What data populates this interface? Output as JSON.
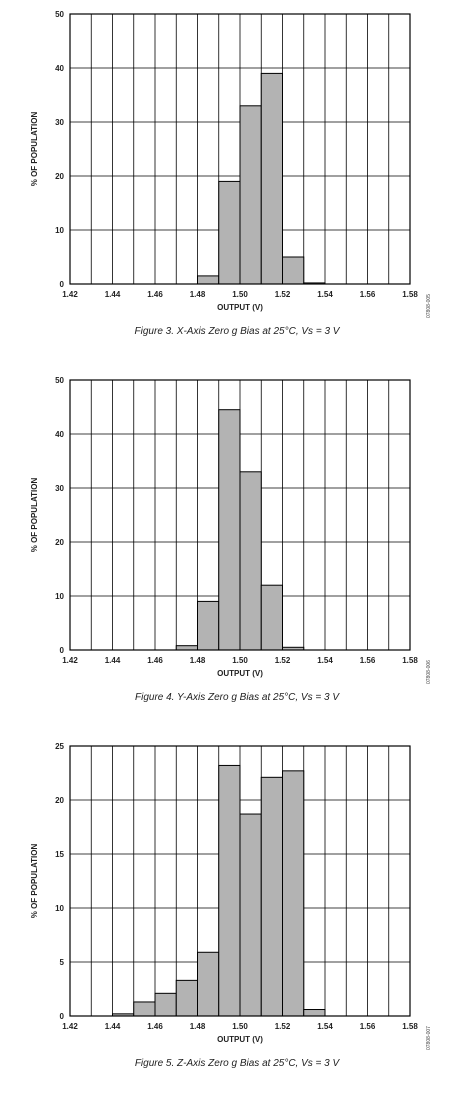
{
  "chart_data": [
    {
      "type": "bar",
      "xlabel": "OUTPUT (V)",
      "ylabel": "% OF POPULATION",
      "xlim": [
        1.42,
        1.58
      ],
      "ylim": [
        0,
        50
      ],
      "x_ticks": [
        "1.42",
        "1.44",
        "1.46",
        "1.48",
        "1.50",
        "1.52",
        "1.54",
        "1.56",
        "1.58"
      ],
      "y_ticks": [
        "0",
        "10",
        "20",
        "30",
        "40",
        "50"
      ],
      "bin_width": 0.01,
      "bins": [
        {
          "x": 1.485,
          "value": 1.5
        },
        {
          "x": 1.495,
          "value": 19
        },
        {
          "x": 1.505,
          "value": 33
        },
        {
          "x": 1.515,
          "value": 39
        },
        {
          "x": 1.525,
          "value": 5
        },
        {
          "x": 1.535,
          "value": 0.2
        }
      ],
      "caption": "Figure 3. X-Axis Zero g Bias at 25°C, Vs = 3 V",
      "side_code": "07808-005",
      "grid": true,
      "bar_color": "#b3b3b3"
    },
    {
      "type": "bar",
      "xlabel": "OUTPUT (V)",
      "ylabel": "% OF POPULATION",
      "xlim": [
        1.42,
        1.58
      ],
      "ylim": [
        0,
        50
      ],
      "x_ticks": [
        "1.42",
        "1.44",
        "1.46",
        "1.48",
        "1.50",
        "1.52",
        "1.54",
        "1.56",
        "1.58"
      ],
      "y_ticks": [
        "0",
        "10",
        "20",
        "30",
        "40",
        "50"
      ],
      "bin_width": 0.01,
      "bins": [
        {
          "x": 1.475,
          "value": 0.8
        },
        {
          "x": 1.485,
          "value": 9
        },
        {
          "x": 1.495,
          "value": 44.5
        },
        {
          "x": 1.505,
          "value": 33
        },
        {
          "x": 1.515,
          "value": 12
        },
        {
          "x": 1.525,
          "value": 0.5
        }
      ],
      "caption": "Figure 4. Y-Axis Zero g Bias at 25°C, Vs = 3 V",
      "side_code": "07808-006",
      "grid": true,
      "bar_color": "#b3b3b3"
    },
    {
      "type": "bar",
      "xlabel": "OUTPUT (V)",
      "ylabel": "% OF POPULATION",
      "xlim": [
        1.42,
        1.58
      ],
      "ylim": [
        0,
        25
      ],
      "x_ticks": [
        "1.42",
        "1.44",
        "1.46",
        "1.48",
        "1.50",
        "1.52",
        "1.54",
        "1.56",
        "1.58"
      ],
      "y_ticks": [
        "0",
        "5",
        "10",
        "15",
        "20",
        "25"
      ],
      "bin_width": 0.01,
      "bins": [
        {
          "x": 1.445,
          "value": 0.2
        },
        {
          "x": 1.455,
          "value": 1.3
        },
        {
          "x": 1.465,
          "value": 2.1
        },
        {
          "x": 1.475,
          "value": 3.3
        },
        {
          "x": 1.485,
          "value": 5.9
        },
        {
          "x": 1.495,
          "value": 23.2
        },
        {
          "x": 1.505,
          "value": 18.7
        },
        {
          "x": 1.515,
          "value": 22.1
        },
        {
          "x": 1.525,
          "value": 22.7
        },
        {
          "x": 1.535,
          "value": 0.6
        }
      ],
      "caption": "Figure 5. Z-Axis Zero g Bias at 25°C, Vs = 3 V",
      "side_code": "07808-007",
      "grid": true,
      "bar_color": "#b3b3b3"
    }
  ]
}
